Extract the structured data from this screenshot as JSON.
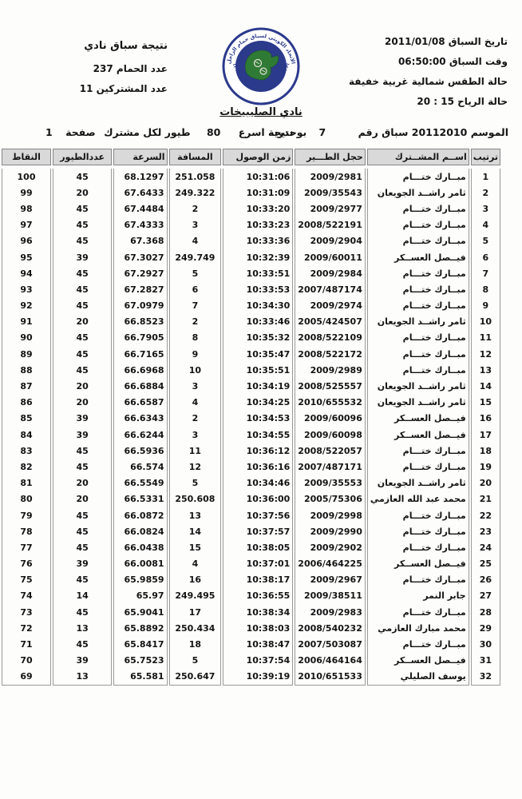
{
  "top_right": {
    "date_label": "تاريخ السباق",
    "date_value": "2011/01/08",
    "time_label": "وقت السباق",
    "time_value": "06:50:00",
    "weather_label": "حالة الطقس",
    "weather_value": "شمالية غربية خفيفة",
    "wind_label": "حالة الرياح",
    "wind_value": "15 : 20"
  },
  "top_left": {
    "title": "نتيجة سباق نادي",
    "pigeons_label": "عدد الحمام",
    "pigeons_value": "237",
    "participants_label": "عدد المشتركين",
    "participants_value": "11"
  },
  "logo": {
    "arabic_text": "الاتحاد الكويتي لسباق حمام الزاجل",
    "english_text": "KUWAIT FEDERATION FOR RACING PIGEON",
    "ring_color": "#2c3a8c",
    "map_color": "#2f7a35"
  },
  "club_name": "نادي الصليبيخات",
  "season_line": {
    "season_label": "الموسم",
    "season_value": "20112010",
    "race_label": "سباق رقم",
    "race_number": "7",
    "location": "بوحدرية",
    "result_label": "نتيجة اسرع",
    "result_value": "80",
    "per_participant_label": "طيور لكل مشترك",
    "page_label": "صفحة",
    "page_number": "1"
  },
  "table": {
    "headers": {
      "rank": "ترتيب",
      "name": "اســم المشــترك",
      "ring": "حجل الطـــير",
      "time": "زمن الوصول",
      "distance": "المسافة",
      "speed": "السرعة",
      "birds": "عددالطيور",
      "points": "النقاط"
    },
    "rows": [
      [
        "1",
        "مبــارك ختـــام",
        "2009/2981",
        "10:31:06",
        "251.058",
        "68.1297",
        "45",
        "100"
      ],
      [
        "2",
        "ثامر راشــد الجويعان",
        "2009/35543",
        "10:31:09",
        "249.322",
        "67.6433",
        "20",
        "99"
      ],
      [
        "3",
        "مبــارك ختـــام",
        "2009/2977",
        "10:33:20",
        "2",
        "67.4484",
        "45",
        "98"
      ],
      [
        "4",
        "مبــارك ختـــام",
        "2008/522191",
        "10:33:23",
        "3",
        "67.4333",
        "45",
        "97"
      ],
      [
        "5",
        "مبــارك ختـــام",
        "2009/2904",
        "10:33:36",
        "4",
        "67.368",
        "45",
        "96"
      ],
      [
        "6",
        "فيــصل العســكر",
        "2009/60011",
        "10:32:39",
        "249.749",
        "67.3027",
        "39",
        "95"
      ],
      [
        "7",
        "مبــارك ختـــام",
        "2009/2984",
        "10:33:51",
        "5",
        "67.2927",
        "45",
        "94"
      ],
      [
        "8",
        "مبــارك ختـــام",
        "2007/487174",
        "10:33:53",
        "6",
        "67.2827",
        "45",
        "93"
      ],
      [
        "9",
        "مبــارك ختـــام",
        "2009/2974",
        "10:34:30",
        "7",
        "67.0979",
        "45",
        "92"
      ],
      [
        "10",
        "ثامر راشــد الجويعان",
        "2005/424507",
        "10:33:46",
        "2",
        "66.8523",
        "20",
        "91"
      ],
      [
        "11",
        "مبــارك ختـــام",
        "2008/522109",
        "10:35:32",
        "8",
        "66.7905",
        "45",
        "90"
      ],
      [
        "12",
        "مبــارك ختـــام",
        "2008/522172",
        "10:35:47",
        "9",
        "66.7165",
        "45",
        "89"
      ],
      [
        "13",
        "مبــارك ختـــام",
        "2009/2989",
        "10:35:51",
        "10",
        "66.6968",
        "45",
        "88"
      ],
      [
        "14",
        "ثامر راشــد الجويعان",
        "2008/525557",
        "10:34:19",
        "3",
        "66.6884",
        "20",
        "87"
      ],
      [
        "15",
        "ثامر راشــد الجويعان",
        "2010/655532",
        "10:34:25",
        "4",
        "66.6587",
        "20",
        "86"
      ],
      [
        "16",
        "فيــصل العســكر",
        "2009/60096",
        "10:34:53",
        "2",
        "66.6343",
        "39",
        "85"
      ],
      [
        "17",
        "فيــصل العســكر",
        "2009/60098",
        "10:34:55",
        "3",
        "66.6244",
        "39",
        "84"
      ],
      [
        "18",
        "مبــارك ختـــام",
        "2008/522057",
        "10:36:12",
        "11",
        "66.5936",
        "45",
        "83"
      ],
      [
        "19",
        "مبــارك ختـــام",
        "2007/487171",
        "10:36:16",
        "12",
        "66.574",
        "45",
        "82"
      ],
      [
        "20",
        "ثامر راشــد الجويعان",
        "2009/35553",
        "10:34:46",
        "5",
        "66.5549",
        "20",
        "81"
      ],
      [
        "21",
        "محمد عبد الله العازمي",
        "2005/75306",
        "10:36:00",
        "250.608",
        "66.5331",
        "20",
        "80"
      ],
      [
        "22",
        "مبــارك ختـــام",
        "2009/2998",
        "10:37:56",
        "13",
        "66.0872",
        "45",
        "79"
      ],
      [
        "23",
        "مبــارك ختـــام",
        "2009/2990",
        "10:37:57",
        "14",
        "66.0824",
        "45",
        "78"
      ],
      [
        "24",
        "مبــارك ختـــام",
        "2009/2902",
        "10:38:05",
        "15",
        "66.0438",
        "45",
        "77"
      ],
      [
        "25",
        "فيــصل العســكر",
        "2006/464225",
        "10:37:01",
        "4",
        "66.0081",
        "39",
        "76"
      ],
      [
        "26",
        "مبــارك ختـــام",
        "2009/2967",
        "10:38:17",
        "16",
        "65.9859",
        "45",
        "75"
      ],
      [
        "27",
        "جابر النمر",
        "2009/38511",
        "10:36:55",
        "249.495",
        "65.97",
        "14",
        "74"
      ],
      [
        "28",
        "مبــارك ختـــام",
        "2009/2983",
        "10:38:34",
        "17",
        "65.9041",
        "45",
        "73"
      ],
      [
        "29",
        "محمد مبارك العازمي",
        "2008/540232",
        "10:38:03",
        "250.434",
        "65.8892",
        "13",
        "72"
      ],
      [
        "30",
        "مبــارك ختـــام",
        "2007/503087",
        "10:38:47",
        "18",
        "65.8417",
        "45",
        "71"
      ],
      [
        "31",
        "فيــصل العســكر",
        "2006/464164",
        "10:37:54",
        "5",
        "65.7523",
        "39",
        "70"
      ],
      [
        "32",
        "يوسف الصليلي",
        "2010/651533",
        "10:39:19",
        "250.647",
        "65.581",
        "13",
        "69"
      ]
    ]
  }
}
